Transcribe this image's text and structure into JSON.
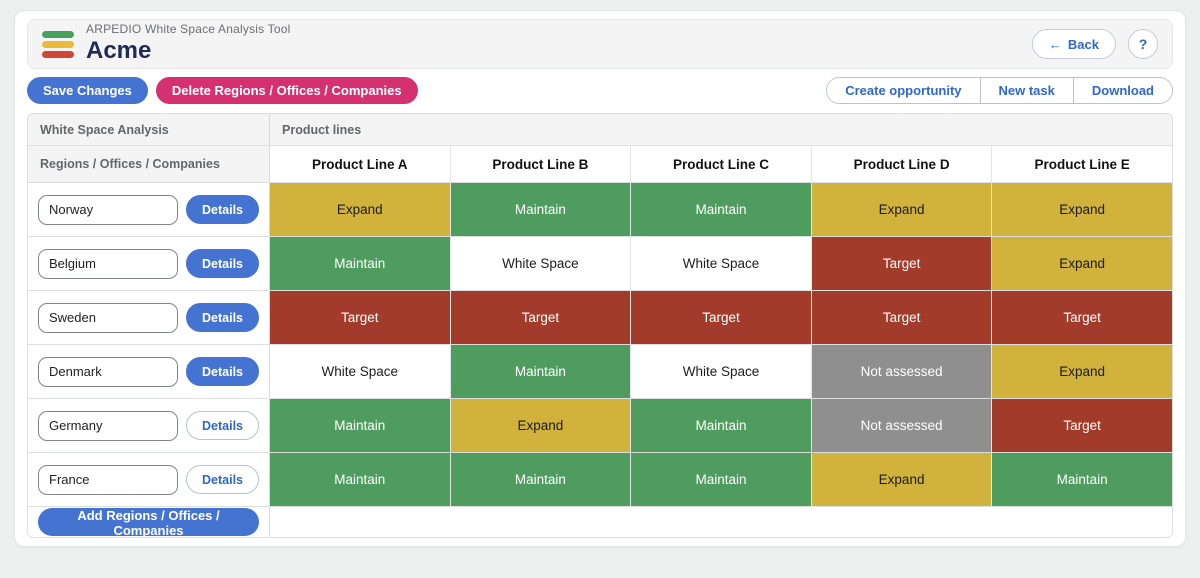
{
  "header": {
    "app_title": "ARPEDIO White Space Analysis Tool",
    "account_name": "Acme",
    "back_arrow": "←",
    "back_label": "Back",
    "help_label": "?"
  },
  "toolbar": {
    "save_label": "Save Changes",
    "delete_label": "Delete Regions / Offices / Companies",
    "create_opportunity_label": "Create opportunity",
    "new_task_label": "New task",
    "download_label": "Download"
  },
  "table": {
    "left_header": "White Space Analysis",
    "right_header": "Product lines",
    "rows_header": "Regions / Offices / Companies",
    "columns": [
      "Product Line A",
      "Product Line B",
      "Product Line C",
      "Product Line D",
      "Product Line E"
    ],
    "details_label": "Details",
    "add_label": "Add Regions / Offices / Companies",
    "rows": [
      {
        "name": "Norway",
        "details_variant": "solid",
        "cells": [
          "Expand",
          "Maintain",
          "Maintain",
          "Expand",
          "Expand"
        ]
      },
      {
        "name": "Belgium",
        "details_variant": "solid",
        "cells": [
          "Maintain",
          "White Space",
          "White Space",
          "Target",
          "Expand"
        ]
      },
      {
        "name": "Sweden",
        "details_variant": "solid",
        "cells": [
          "Target",
          "Target",
          "Target",
          "Target",
          "Target"
        ]
      },
      {
        "name": "Denmark",
        "details_variant": "solid",
        "cells": [
          "White Space",
          "Maintain",
          "White Space",
          "Not assessed",
          "Expand"
        ]
      },
      {
        "name": "Germany",
        "details_variant": "outline",
        "cells": [
          "Maintain",
          "Expand",
          "Maintain",
          "Not assessed",
          "Target"
        ]
      },
      {
        "name": "France",
        "details_variant": "outline",
        "cells": [
          "Maintain",
          "Maintain",
          "Maintain",
          "Expand",
          "Maintain"
        ]
      }
    ]
  },
  "status_colors": {
    "Expand": {
      "bg": "#d1b23c",
      "text": "#1c1c1c"
    },
    "Maintain": {
      "bg": "#4e9d5e",
      "text": "#ffffff"
    },
    "White Space": {
      "bg": "#ffffff",
      "text": "#1c1c1c"
    },
    "Target": {
      "bg": "#a33b2b",
      "text": "#ffffff"
    },
    "Not assessed": {
      "bg": "#8f8f8f",
      "text": "#ffffff"
    }
  },
  "brand_colors": {
    "logo_bars": [
      "#47a05e",
      "#ecba3b",
      "#cf4734"
    ],
    "primary_blue": "#4573d2",
    "delete_pink": "#d5306f",
    "link_blue": "#2f66cf"
  }
}
